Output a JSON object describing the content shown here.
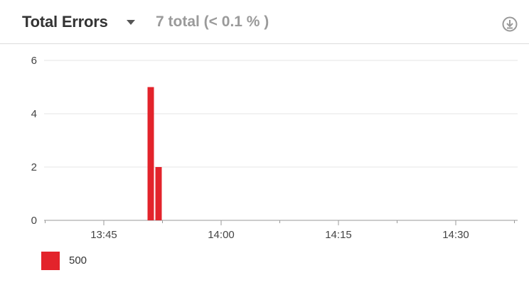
{
  "header": {
    "title": "Total Errors",
    "summary": "7 total (< 0.1 % )",
    "icons": {
      "dropdown": "caret-down-icon",
      "download": "download-icon"
    }
  },
  "colors": {
    "series": "#e3232b",
    "grid": "#e6e6e6",
    "axis": "#999999",
    "muted": "#9a9a9a"
  },
  "chart_data": {
    "type": "bar",
    "title": "",
    "xlabel": "",
    "ylabel": "",
    "ylim": [
      0,
      6
    ],
    "yticks": [
      "0",
      "2",
      "4",
      "6"
    ],
    "xticks": [
      "13:45",
      "14:00",
      "14:15",
      "14:30"
    ],
    "grid": true,
    "legend": "bottom-left",
    "series": [
      {
        "name": "500",
        "points": [
          {
            "x": "13:51",
            "value": 5
          },
          {
            "x": "13:52",
            "value": 2
          }
        ]
      }
    ]
  }
}
